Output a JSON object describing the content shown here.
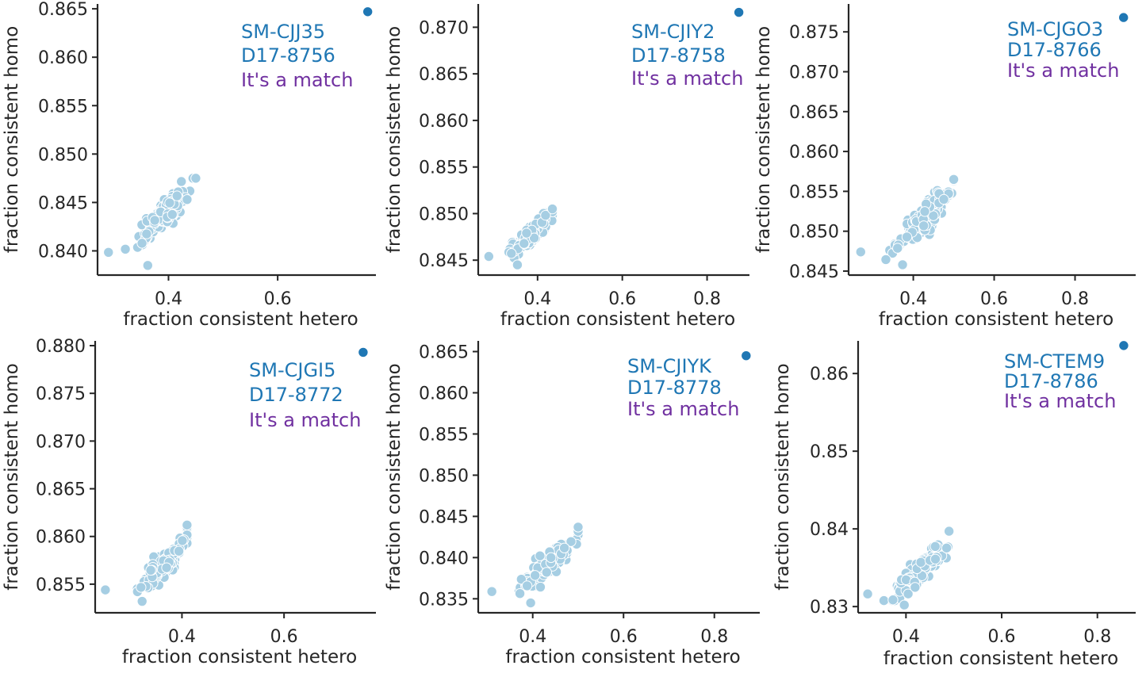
{
  "colors": {
    "background_points": "#a6cee3",
    "highlight_point": "#1f77b4",
    "sample_text": "#1f77b4",
    "match_text": "#7030a0",
    "axis": "#262626"
  },
  "chart_data": [
    {
      "type": "scatter",
      "xlabel": "fraction consistent hetero",
      "ylabel": "fraction consistent homo",
      "xlim": [
        0.27,
        0.78
      ],
      "ylim": [
        0.8375,
        0.8655
      ],
      "xticks": [
        "0.4",
        "0.6"
      ],
      "yticks": [
        "0.840",
        "0.845",
        "0.850",
        "0.855",
        "0.860",
        "0.865"
      ],
      "cluster": {
        "x_range": [
          0.29,
          0.45
        ],
        "y_range": [
          0.8385,
          0.8475
        ],
        "center": [
          0.39,
          0.8435
        ]
      },
      "highlight": {
        "x": 0.765,
        "y": 0.8647
      },
      "annotation": [
        "SM-CJJ35",
        "D17-8756",
        "It's a match"
      ]
    },
    {
      "type": "scatter",
      "xlabel": "fraction consistent hetero",
      "ylabel": "fraction consistent homo",
      "xlim": [
        0.26,
        0.9
      ],
      "ylim": [
        0.8434,
        0.8725
      ],
      "xticks": [
        "0.4",
        "0.6",
        "0.8"
      ],
      "yticks": [
        "0.845",
        "0.850",
        "0.855",
        "0.860",
        "0.865",
        "0.870"
      ],
      "cluster": {
        "x_range": [
          0.285,
          0.435
        ],
        "y_range": [
          0.8445,
          0.8505
        ],
        "center": [
          0.385,
          0.8478
        ]
      },
      "highlight": {
        "x": 0.875,
        "y": 0.8716
      },
      "annotation": [
        "SM-CJIY2",
        "D17-8758",
        "It's a match"
      ]
    },
    {
      "type": "scatter",
      "xlabel": "fraction consistent hetero",
      "ylabel": "fraction consistent homo",
      "xlim": [
        0.24,
        0.95
      ],
      "ylim": [
        0.8445,
        0.8785
      ],
      "xticks": [
        "0.4",
        "0.6",
        "0.8"
      ],
      "yticks": [
        "0.845",
        "0.850",
        "0.855",
        "0.860",
        "0.865",
        "0.870",
        "0.875"
      ],
      "cluster": {
        "x_range": [
          0.27,
          0.5
        ],
        "y_range": [
          0.8458,
          0.8565
        ],
        "center": [
          0.43,
          0.852
        ]
      },
      "highlight": {
        "x": 0.92,
        "y": 0.8768
      },
      "annotation": [
        "SM-CJGO3",
        "D17-8766",
        "It's a match"
      ]
    },
    {
      "type": "scatter",
      "xlabel": "fraction consistent hetero",
      "ylabel": "fraction consistent homo",
      "xlim": [
        0.23,
        0.78
      ],
      "ylim": [
        0.852,
        0.8805
      ],
      "xticks": [
        "0.4",
        "0.6"
      ],
      "yticks": [
        "0.855",
        "0.860",
        "0.865",
        "0.870",
        "0.875",
        "0.880"
      ],
      "cluster": {
        "x_range": [
          0.25,
          0.41
        ],
        "y_range": [
          0.8532,
          0.8612
        ],
        "center": [
          0.365,
          0.857
        ]
      },
      "highlight": {
        "x": 0.755,
        "y": 0.8793
      },
      "annotation": [
        "SM-CJGI5",
        "D17-8772",
        "It's a match"
      ]
    },
    {
      "type": "scatter",
      "xlabel": "fraction consistent hetero",
      "ylabel": "fraction consistent homo",
      "xlim": [
        0.28,
        0.9
      ],
      "ylim": [
        0.8333,
        0.8663
      ],
      "xticks": [
        "0.4",
        "0.6",
        "0.8"
      ],
      "yticks": [
        "0.835",
        "0.840",
        "0.845",
        "0.850",
        "0.855",
        "0.860",
        "0.865"
      ],
      "cluster": {
        "x_range": [
          0.31,
          0.5
        ],
        "y_range": [
          0.8345,
          0.8437
        ],
        "center": [
          0.43,
          0.839
        ]
      },
      "highlight": {
        "x": 0.87,
        "y": 0.8645
      },
      "annotation": [
        "SM-CJIYK",
        "D17-8778",
        "It's a match"
      ]
    },
    {
      "type": "scatter",
      "xlabel": "fraction consistent hetero",
      "ylabel": "fraction consistent homo",
      "xlim": [
        0.3,
        0.88
      ],
      "ylim": [
        0.8292,
        0.8642
      ],
      "xticks": [
        "0.4",
        "0.6",
        "0.8"
      ],
      "yticks": [
        "0.83",
        "0.84",
        "0.85",
        "0.86"
      ],
      "cluster": {
        "x_range": [
          0.32,
          0.49
        ],
        "y_range": [
          0.8302,
          0.8397
        ],
        "center": [
          0.43,
          0.8345
        ]
      },
      "highlight": {
        "x": 0.855,
        "y": 0.8636
      },
      "annotation": [
        "SM-CTEM9",
        "D17-8786",
        "It's a match"
      ]
    }
  ]
}
